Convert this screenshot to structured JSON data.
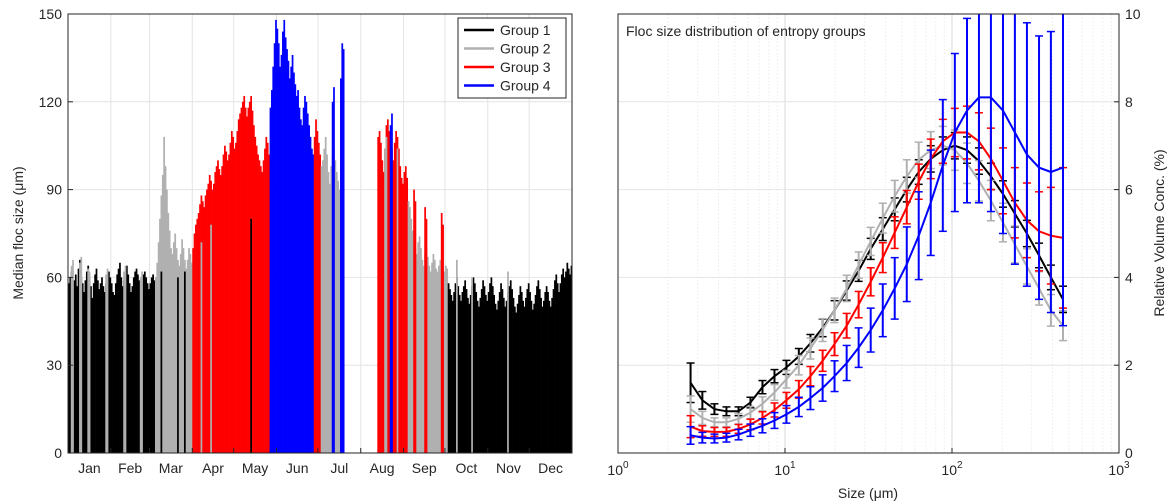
{
  "chart_data": [
    {
      "type": "bar",
      "ylabel": "Median floc size (μm)",
      "ylim": [
        0,
        150
      ],
      "xlim": [
        0,
        365
      ],
      "yticks": [
        0,
        30,
        60,
        90,
        120,
        150
      ],
      "month_labels": [
        "Jan",
        "Feb",
        "Mar",
        "Apr",
        "May",
        "Jun",
        "Jul",
        "Aug",
        "Sep",
        "Oct",
        "Nov",
        "Dec"
      ],
      "grid": true,
      "legend_position": "top-right",
      "legend": [
        {
          "name": "Group 1",
          "color": "#000000"
        },
        {
          "name": "Group 2",
          "color": "#b0b0b0"
        },
        {
          "name": "Group 3",
          "color": "#ff0000"
        },
        {
          "name": "Group 4",
          "color": "#0000ff"
        }
      ],
      "day_segments": [
        {
          "start": 0,
          "end": 63,
          "group": 1,
          "values": [
            58,
            60,
            62,
            56,
            59,
            61,
            57,
            63,
            66,
            60,
            58,
            55,
            59,
            62,
            64,
            60,
            57,
            53,
            58,
            61,
            63,
            59,
            56,
            58,
            60,
            57,
            55,
            58,
            61,
            62,
            60,
            58,
            55,
            54,
            58,
            61,
            63,
            65,
            60,
            57,
            59,
            62,
            64,
            61,
            58,
            55,
            57,
            60,
            62,
            63,
            61,
            59,
            57,
            58,
            61,
            62,
            60,
            58,
            56,
            58,
            60,
            61,
            59
          ]
        },
        {
          "start": 2,
          "end": 4,
          "group": 2,
          "values": [
            64,
            66
          ]
        },
        {
          "start": 8,
          "end": 10,
          "group": 2,
          "values": [
            65,
            67
          ]
        },
        {
          "start": 14,
          "end": 16,
          "group": 2,
          "values": [
            63,
            62
          ]
        },
        {
          "start": 27,
          "end": 29,
          "group": 2,
          "values": [
            61,
            63
          ]
        },
        {
          "start": 40,
          "end": 42,
          "group": 2,
          "values": [
            62,
            64
          ]
        },
        {
          "start": 52,
          "end": 54,
          "group": 2,
          "values": [
            60,
            62
          ]
        },
        {
          "start": 63,
          "end": 90,
          "group": 2,
          "values": [
            60,
            65,
            72,
            80,
            88,
            95,
            108,
            98,
            90,
            82,
            76,
            70,
            68,
            72,
            75,
            70,
            66,
            64,
            68,
            73,
            70,
            66,
            63,
            66,
            70,
            68,
            65
          ]
        },
        {
          "start": 67,
          "end": 68,
          "group": 1,
          "values": [
            62
          ]
        },
        {
          "start": 79,
          "end": 80,
          "group": 1,
          "values": [
            60
          ]
        },
        {
          "start": 84,
          "end": 85,
          "group": 1,
          "values": [
            62
          ]
        },
        {
          "start": 90,
          "end": 146,
          "group": 3,
          "values": [
            70,
            75,
            78,
            80,
            82,
            85,
            88,
            86,
            84,
            88,
            90,
            92,
            95,
            93,
            90,
            92,
            96,
            98,
            100,
            97,
            95,
            98,
            102,
            105,
            103,
            100,
            102,
            106,
            110,
            108,
            104,
            106,
            110,
            114,
            116,
            118,
            120,
            122,
            118,
            115,
            118,
            120,
            122,
            117,
            112,
            108,
            105,
            102,
            100,
            98,
            96,
            100,
            104,
            108,
            106,
            102
          ]
        },
        {
          "start": 96,
          "end": 97,
          "group": 2,
          "values": [
            72
          ]
        },
        {
          "start": 103,
          "end": 104,
          "group": 2,
          "values": [
            78
          ]
        },
        {
          "start": 132,
          "end": 133,
          "group": 1,
          "values": [
            80
          ]
        },
        {
          "start": 146,
          "end": 178,
          "group": 4,
          "values": [
            118,
            124,
            132,
            140,
            148,
            145,
            140,
            132,
            136,
            144,
            148,
            142,
            138,
            134,
            128,
            132,
            136,
            130,
            126,
            122,
            124,
            118,
            114,
            112,
            118,
            122,
            120,
            116,
            112,
            108,
            104,
            102
          ]
        },
        {
          "start": 178,
          "end": 183,
          "group": 3,
          "values": [
            108,
            114,
            110,
            106,
            102
          ]
        },
        {
          "start": 183,
          "end": 200,
          "group": 2,
          "values": [
            98,
            100,
            104,
            108,
            102,
            96,
            92,
            98,
            102,
            104,
            100,
            96,
            93,
            90,
            88,
            86,
            84
          ]
        },
        {
          "start": 191,
          "end": 193,
          "group": 4,
          "values": [
            120,
            125
          ]
        },
        {
          "start": 197,
          "end": 200,
          "group": 4,
          "values": [
            128,
            140,
            138
          ]
        },
        {
          "start": 224,
          "end": 246,
          "group": 3,
          "values": [
            108,
            110,
            106,
            100,
            96,
            104,
            112,
            114,
            110,
            108,
            104,
            100,
            106,
            110,
            108,
            104,
            98,
            94,
            92,
            96,
            98,
            94
          ]
        },
        {
          "start": 229,
          "end": 231,
          "group": 2,
          "values": [
            104,
            108
          ]
        },
        {
          "start": 233,
          "end": 235,
          "group": 4,
          "values": [
            112,
            116
          ]
        },
        {
          "start": 238,
          "end": 239,
          "group": 2,
          "values": [
            104
          ]
        },
        {
          "start": 246,
          "end": 275,
          "group": 2,
          "values": [
            86,
            84,
            80,
            76,
            72,
            70,
            68,
            72,
            74,
            70,
            66,
            64,
            68,
            70,
            67,
            64,
            62,
            65,
            68,
            66,
            63,
            62,
            64,
            66,
            65,
            63,
            62,
            64,
            63
          ]
        },
        {
          "start": 250,
          "end": 252,
          "group": 3,
          "values": [
            90,
            86
          ]
        },
        {
          "start": 258,
          "end": 260,
          "group": 3,
          "values": [
            84,
            80
          ]
        },
        {
          "start": 270,
          "end": 272,
          "group": 3,
          "values": [
            82,
            78
          ]
        },
        {
          "start": 275,
          "end": 365,
          "group": 1,
          "values": [
            58,
            56,
            54,
            52,
            55,
            58,
            60,
            57,
            54,
            52,
            55,
            57,
            59,
            56,
            53,
            51,
            54,
            57,
            60,
            58,
            55,
            52,
            50,
            53,
            56,
            59,
            57,
            54,
            52,
            55,
            58,
            60,
            57,
            54,
            51,
            49,
            52,
            55,
            58,
            56,
            53,
            50,
            52,
            55,
            57,
            59,
            56,
            53,
            50,
            48,
            51,
            54,
            57,
            55,
            52,
            50,
            53,
            56,
            58,
            55,
            52,
            49,
            51,
            54,
            57,
            59,
            56,
            53,
            50,
            52,
            55,
            57,
            55,
            52,
            50,
            53,
            56,
            59,
            61,
            58,
            55,
            58,
            61,
            63,
            60,
            62,
            65,
            63,
            61,
            64
          ]
        },
        {
          "start": 281,
          "end": 282,
          "group": 2,
          "values": [
            66
          ]
        },
        {
          "start": 292,
          "end": 293,
          "group": 2,
          "values": [
            60
          ]
        },
        {
          "start": 318,
          "end": 319,
          "group": 2,
          "values": [
            62
          ]
        }
      ]
    },
    {
      "type": "line",
      "title": "Floc size distribution of entropy groups",
      "xlabel": "Size (μm)",
      "ylabel": "Relative Volume Conc. (%)",
      "xscale": "log",
      "xlim": [
        1,
        1000
      ],
      "ylim": [
        0,
        10
      ],
      "yticks": [
        0,
        2,
        4,
        6,
        8,
        10
      ],
      "xtick_labels": [
        "10^0",
        "10^1",
        "10^2",
        "10^3"
      ],
      "grid": true,
      "x": [
        2.72,
        3.2,
        3.78,
        4.46,
        5.27,
        6.21,
        7.33,
        8.65,
        10.2,
        12.1,
        14.2,
        16.8,
        19.8,
        23.4,
        27.6,
        32.6,
        38.5,
        45.4,
        53.6,
        63.2,
        74.6,
        88.1,
        104,
        123,
        145,
        171,
        202,
        238,
        281,
        332,
        391,
        462
      ],
      "series": [
        {
          "name": "Group 1",
          "color": "#000000",
          "values": [
            1.6,
            1.2,
            1.0,
            0.95,
            0.95,
            1.15,
            1.5,
            1.75,
            1.95,
            2.2,
            2.5,
            2.85,
            3.25,
            3.7,
            4.15,
            4.65,
            5.1,
            5.55,
            6.0,
            6.4,
            6.7,
            6.9,
            7.0,
            6.9,
            6.65,
            6.3,
            5.9,
            5.45,
            5.0,
            4.5,
            4.0,
            3.5
          ],
          "err": [
            0.45,
            0.2,
            0.12,
            0.1,
            0.1,
            0.12,
            0.15,
            0.15,
            0.16,
            0.18,
            0.2,
            0.2,
            0.22,
            0.22,
            0.24,
            0.24,
            0.26,
            0.26,
            0.28,
            0.28,
            0.3,
            0.3,
            0.3,
            0.3,
            0.3,
            0.3,
            0.3,
            0.3,
            0.3,
            0.28,
            0.28,
            0.3
          ]
        },
        {
          "name": "Group 2",
          "color": "#b0b0b0",
          "values": [
            1.0,
            0.8,
            0.7,
            0.7,
            0.78,
            0.92,
            1.12,
            1.38,
            1.68,
            2.0,
            2.38,
            2.8,
            3.25,
            3.75,
            4.28,
            4.82,
            5.35,
            5.85,
            6.3,
            6.68,
            6.9,
            7.0,
            6.9,
            6.6,
            6.2,
            5.75,
            5.25,
            4.75,
            4.25,
            3.75,
            3.25,
            2.9
          ],
          "err": [
            0.3,
            0.15,
            0.1,
            0.1,
            0.12,
            0.14,
            0.16,
            0.18,
            0.2,
            0.22,
            0.24,
            0.26,
            0.28,
            0.3,
            0.3,
            0.32,
            0.34,
            0.36,
            0.38,
            0.4,
            0.42,
            0.44,
            0.46,
            0.46,
            0.46,
            0.46,
            0.44,
            0.42,
            0.4,
            0.38,
            0.36,
            0.34
          ]
        },
        {
          "name": "Group 3",
          "color": "#ff0000",
          "values": [
            0.6,
            0.5,
            0.48,
            0.48,
            0.55,
            0.65,
            0.8,
            0.98,
            1.2,
            1.45,
            1.75,
            2.1,
            2.48,
            2.9,
            3.38,
            3.9,
            4.45,
            5.02,
            5.6,
            6.18,
            6.7,
            7.1,
            7.3,
            7.3,
            7.1,
            6.7,
            6.2,
            5.7,
            5.3,
            5.05,
            4.95,
            4.9
          ],
          "err": [
            0.25,
            0.12,
            0.1,
            0.1,
            0.1,
            0.12,
            0.14,
            0.16,
            0.18,
            0.2,
            0.22,
            0.24,
            0.26,
            0.28,
            0.3,
            0.32,
            0.34,
            0.36,
            0.38,
            0.4,
            0.45,
            0.5,
            0.55,
            0.6,
            0.65,
            0.7,
            0.75,
            0.8,
            0.85,
            0.9,
            1.1,
            1.6
          ]
        },
        {
          "name": "Group 4",
          "color": "#0000ff",
          "values": [
            0.4,
            0.35,
            0.33,
            0.35,
            0.42,
            0.52,
            0.62,
            0.74,
            0.88,
            1.05,
            1.25,
            1.48,
            1.75,
            2.05,
            2.4,
            2.8,
            3.25,
            3.75,
            4.3,
            4.95,
            5.7,
            6.55,
            7.3,
            7.8,
            8.1,
            8.1,
            7.8,
            7.3,
            6.8,
            6.5,
            6.4,
            6.5
          ],
          "err": [
            0.2,
            0.12,
            0.1,
            0.1,
            0.12,
            0.14,
            0.16,
            0.18,
            0.2,
            0.22,
            0.26,
            0.3,
            0.35,
            0.4,
            0.45,
            0.5,
            0.6,
            0.7,
            0.85,
            1.0,
            1.2,
            1.5,
            1.8,
            2.1,
            2.4,
            2.6,
            2.8,
            3.0,
            3.0,
            3.0,
            3.2,
            3.6
          ]
        }
      ]
    }
  ]
}
